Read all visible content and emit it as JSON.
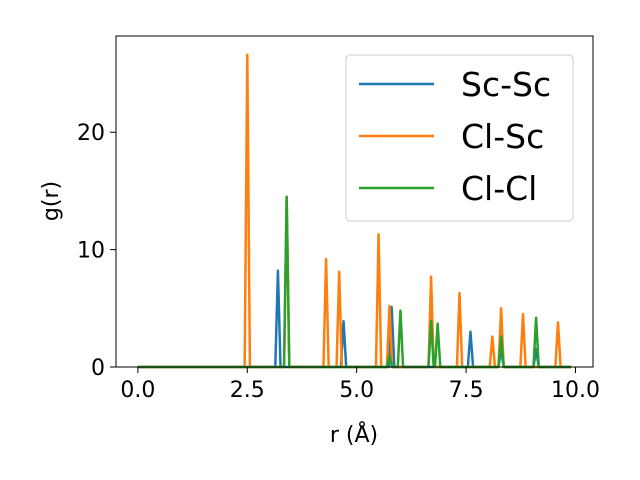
{
  "chart_data": {
    "type": "line",
    "title": "",
    "xlabel": "r (Å)",
    "ylabel": "g(r)",
    "xlim": [
      -0.5,
      10.4
    ],
    "ylim": [
      0,
      28.2
    ],
    "xticks": [
      0.0,
      2.5,
      5.0,
      7.5,
      10.0
    ],
    "xtick_labels": [
      "0.0",
      "2.5",
      "5.0",
      "7.5",
      "10.0"
    ],
    "yticks": [
      0,
      10,
      20
    ],
    "ytick_labels": [
      "0",
      "10",
      "20"
    ],
    "grid": false,
    "legend_position": "top-right",
    "series": [
      {
        "name": "Sc-Sc",
        "color": "#1f77b4",
        "peaks": [
          [
            3.2,
            8.2
          ],
          [
            4.7,
            3.9
          ],
          [
            5.8,
            5.1
          ],
          [
            7.6,
            3.0
          ],
          [
            8.3,
            1.5
          ],
          [
            9.1,
            1.5
          ]
        ]
      },
      {
        "name": "Cl-Sc",
        "color": "#ff7f0e",
        "peaks": [
          [
            2.5,
            26.6
          ],
          [
            3.4,
            14.5
          ],
          [
            4.3,
            9.2
          ],
          [
            4.6,
            8.1
          ],
          [
            5.5,
            11.3
          ],
          [
            5.75,
            5.2
          ],
          [
            6.7,
            7.7
          ],
          [
            7.35,
            6.3
          ],
          [
            8.1,
            2.6
          ],
          [
            8.3,
            5.0
          ],
          [
            8.8,
            4.5
          ],
          [
            9.6,
            3.8
          ]
        ]
      },
      {
        "name": "Cl-Cl",
        "color": "#2ca02c",
        "peaks": [
          [
            3.4,
            14.5
          ],
          [
            5.75,
            1.0
          ],
          [
            6.0,
            4.8
          ],
          [
            6.7,
            3.9
          ],
          [
            6.85,
            3.7
          ],
          [
            8.3,
            2.6
          ],
          [
            9.1,
            4.2
          ]
        ]
      }
    ]
  }
}
